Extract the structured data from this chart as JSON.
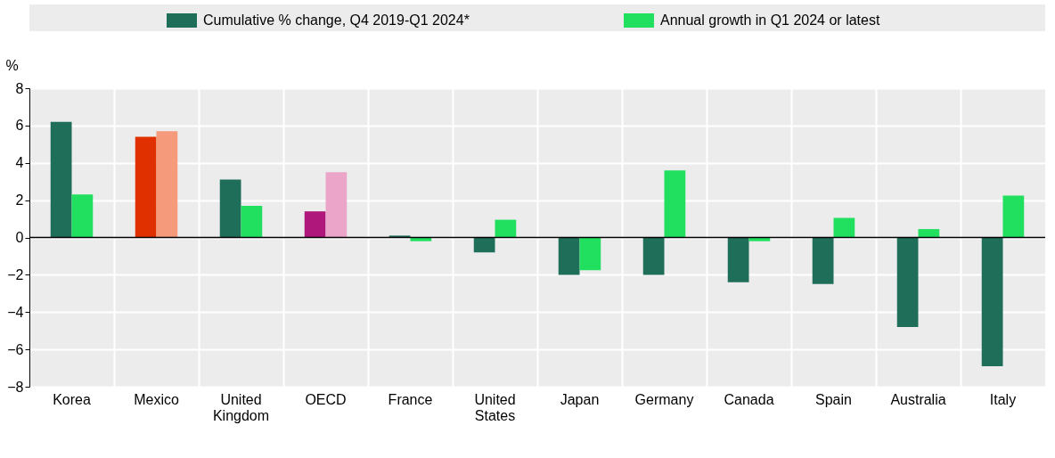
{
  "chart_data": {
    "type": "bar",
    "ylabel": "%",
    "categories": [
      "Korea",
      "Mexico",
      "United Kingdom",
      "OECD",
      "France",
      "United States",
      "Japan",
      "Germany",
      "Canada",
      "Spain",
      "Australia",
      "Italy"
    ],
    "series": [
      {
        "name": "Cumulative % change, Q4 2019-Q1 2024*",
        "color": "#1f6e5a",
        "colors": [
          "#1f6e5a",
          "#e03000",
          "#1f6e5a",
          "#b0177a",
          "#1f6e5a",
          "#1f6e5a",
          "#1f6e5a",
          "#1f6e5a",
          "#1f6e5a",
          "#1f6e5a",
          "#1f6e5a",
          "#1f6e5a"
        ],
        "values": [
          6.2,
          5.4,
          3.1,
          1.4,
          0.1,
          -0.8,
          -2.0,
          -2.0,
          -2.4,
          -2.5,
          -4.8,
          -6.9
        ]
      },
      {
        "name": "Annual growth in Q1 2024 or latest",
        "color": "#22e05f",
        "colors": [
          "#22e05f",
          "#f59a7a",
          "#22e05f",
          "#eaa5c8",
          "#22e05f",
          "#22e05f",
          "#22e05f",
          "#22e05f",
          "#22e05f",
          "#22e05f",
          "#22e05f",
          "#22e05f"
        ],
        "values": [
          2.3,
          5.7,
          1.7,
          3.5,
          -0.2,
          0.95,
          -1.75,
          3.6,
          -0.2,
          1.05,
          0.45,
          2.25
        ]
      }
    ],
    "ylim": [
      -8,
      8
    ],
    "yticks": [
      -8,
      -6,
      -4,
      -2,
      0,
      2,
      4,
      6,
      8
    ],
    "grid": true,
    "legend": "top"
  }
}
